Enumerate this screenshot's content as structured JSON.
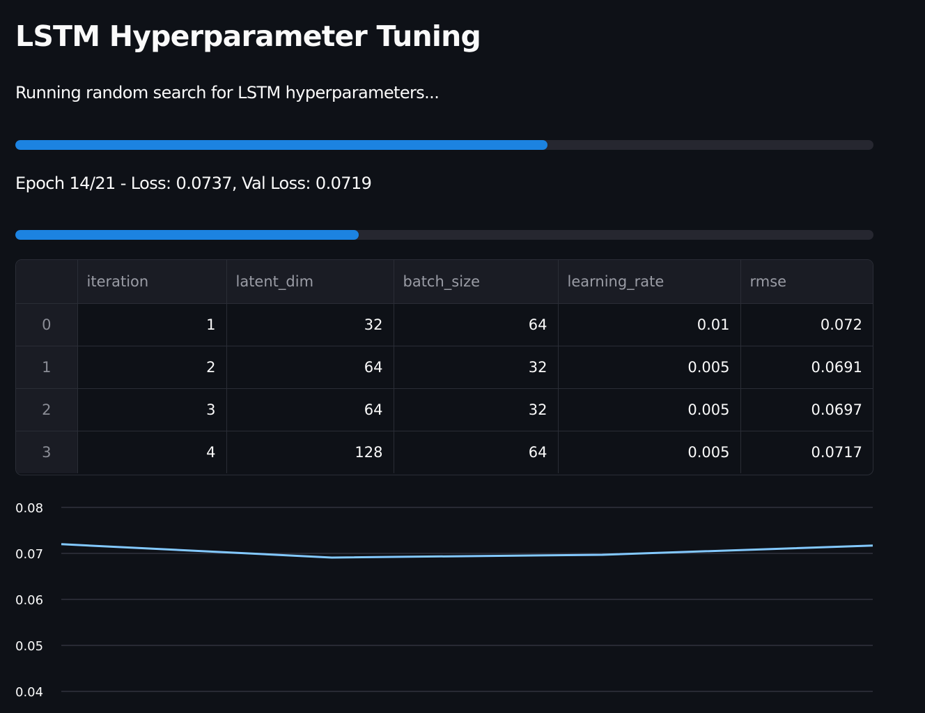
{
  "header": {
    "title": "LSTM Hyperparameter Tuning"
  },
  "search": {
    "status": "Running random search for LSTM hyperparameters...",
    "progress": 0.62
  },
  "training": {
    "status": "Epoch 14/21 - Loss: 0.0737, Val Loss: 0.0719",
    "progress": 0.4
  },
  "results_table": {
    "columns": [
      "",
      "iteration",
      "latent_dim",
      "batch_size",
      "learning_rate",
      "rmse"
    ],
    "rows": [
      [
        "0",
        "1",
        "32",
        "64",
        "0.01",
        "0.072"
      ],
      [
        "1",
        "2",
        "64",
        "32",
        "0.005",
        "0.0691"
      ],
      [
        "2",
        "3",
        "64",
        "32",
        "0.005",
        "0.0697"
      ],
      [
        "3",
        "4",
        "128",
        "64",
        "0.005",
        "0.0717"
      ]
    ]
  },
  "colors": {
    "background": "#0e1117",
    "progress_fill": "#1c83e1",
    "line": "#83c9ff"
  },
  "chart_data": {
    "type": "line",
    "x": [
      1,
      2,
      3,
      4
    ],
    "series": [
      {
        "values": [
          0.072,
          0.0691,
          0.0697,
          0.0717
        ]
      }
    ],
    "y_ticks": [
      "0.08",
      "0.07",
      "0.06",
      "0.05",
      "0.04"
    ],
    "ylim": [
      0.04,
      0.08
    ],
    "grid": true
  }
}
